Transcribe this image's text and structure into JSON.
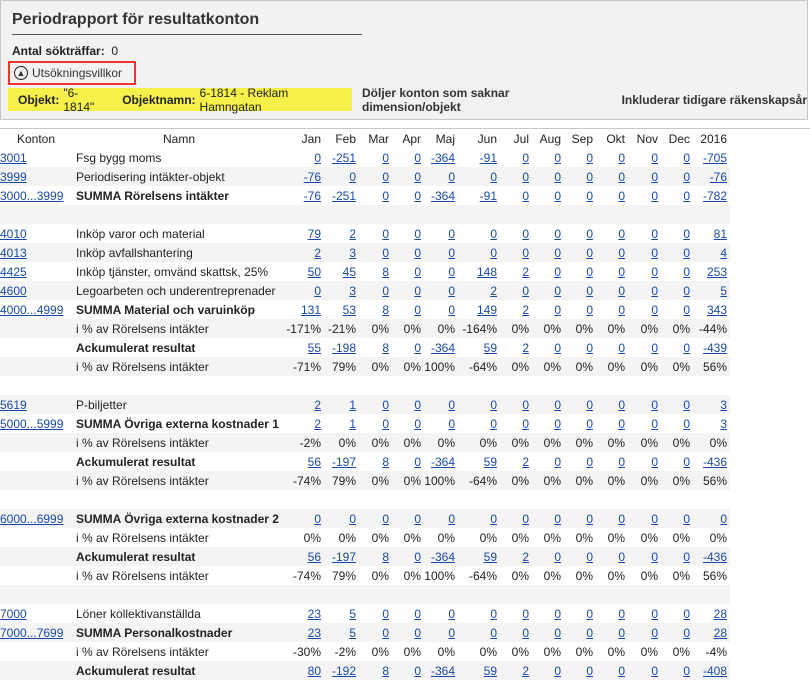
{
  "header": {
    "title": "Periodrapport för resultatkonton",
    "count_label": "Antal sökträffar:",
    "count_value": "0",
    "toggle_label": "Utsökningsvillkor",
    "filter_object_label": "Objekt:",
    "filter_object_value": "\"6-1814\"",
    "filter_objname_label": "Objektnamn:",
    "filter_objname_value": "6-1814 - Reklam Hamngatan",
    "filter_hide_label": "Döljer konton som saknar dimension/objekt",
    "filter_include_label": "Inkluderar tidigare räkenskapsår"
  },
  "columns": [
    "Konton",
    "Namn",
    "Jan",
    "Feb",
    "Mar",
    "Apr",
    "Maj",
    "Jun",
    "Jul",
    "Aug",
    "Sep",
    "Okt",
    "Nov",
    "Dec",
    "2016"
  ],
  "rows": [
    {
      "konto": "3001",
      "namn": "Fsg bygg moms",
      "bold": false,
      "link": true,
      "vals": [
        "0",
        "-251",
        "0",
        "0",
        "-364",
        "-91",
        "0",
        "0",
        "0",
        "0",
        "0",
        "0",
        "-705"
      ]
    },
    {
      "konto": "3999",
      "namn": "Periodisering intäkter-objekt",
      "bold": false,
      "link": true,
      "vals": [
        "-76",
        "0",
        "0",
        "0",
        "0",
        "0",
        "0",
        "0",
        "0",
        "0",
        "0",
        "0",
        "-76"
      ]
    },
    {
      "konto": "3000...3999",
      "namn": "SUMMA Rörelsens intäkter",
      "bold": true,
      "link": true,
      "vals": [
        "-76",
        "-251",
        "0",
        "0",
        "-364",
        "-91",
        "0",
        "0",
        "0",
        "0",
        "0",
        "0",
        "-782"
      ]
    },
    {
      "konto": "",
      "namn": "",
      "bold": false,
      "link": false,
      "vals": [
        "",
        "",
        "",
        "",
        "",
        "",
        "",
        "",
        "",
        "",
        "",
        "",
        ""
      ]
    },
    {
      "konto": "4010",
      "namn": "Inköp varor och material",
      "bold": false,
      "link": true,
      "vals": [
        "79",
        "2",
        "0",
        "0",
        "0",
        "0",
        "0",
        "0",
        "0",
        "0",
        "0",
        "0",
        "81"
      ]
    },
    {
      "konto": "4013",
      "namn": "Inköp avfallshantering",
      "bold": false,
      "link": true,
      "vals": [
        "2",
        "3",
        "0",
        "0",
        "0",
        "0",
        "0",
        "0",
        "0",
        "0",
        "0",
        "0",
        "4"
      ]
    },
    {
      "konto": "4425",
      "namn": "Inköp tjänster, omvänd skattsk, 25%",
      "bold": false,
      "link": true,
      "vals": [
        "50",
        "45",
        "8",
        "0",
        "0",
        "148",
        "2",
        "0",
        "0",
        "0",
        "0",
        "0",
        "253"
      ]
    },
    {
      "konto": "4600",
      "namn": "Legoarbeten och underentreprenader",
      "bold": false,
      "link": true,
      "vals": [
        "0",
        "3",
        "0",
        "0",
        "0",
        "2",
        "0",
        "0",
        "0",
        "0",
        "0",
        "0",
        "5"
      ]
    },
    {
      "konto": "4000...4999",
      "namn": "SUMMA Material och varuinköp",
      "bold": true,
      "link": true,
      "vals": [
        "131",
        "53",
        "8",
        "0",
        "0",
        "149",
        "2",
        "0",
        "0",
        "0",
        "0",
        "0",
        "343"
      ]
    },
    {
      "konto": "",
      "namn": "i % av Rörelsens intäkter",
      "bold": false,
      "link": false,
      "vals": [
        "-171%",
        "-21%",
        "0%",
        "0%",
        "0%",
        "-164%",
        "0%",
        "0%",
        "0%",
        "0%",
        "0%",
        "0%",
        "-44%"
      ]
    },
    {
      "konto": "",
      "namn": "Ackumulerat resultat",
      "bold": true,
      "link": true,
      "vals": [
        "55",
        "-198",
        "8",
        "0",
        "-364",
        "59",
        "2",
        "0",
        "0",
        "0",
        "0",
        "0",
        "-439"
      ]
    },
    {
      "konto": "",
      "namn": "i % av Rörelsens intäkter",
      "bold": false,
      "link": false,
      "vals": [
        "-71%",
        "79%",
        "0%",
        "0%",
        "100%",
        "-64%",
        "0%",
        "0%",
        "0%",
        "0%",
        "0%",
        "0%",
        "56%"
      ]
    },
    {
      "konto": "",
      "namn": "",
      "bold": false,
      "link": false,
      "vals": [
        "",
        "",
        "",
        "",
        "",
        "",
        "",
        "",
        "",
        "",
        "",
        "",
        ""
      ]
    },
    {
      "konto": "5619",
      "namn": "P-biljetter",
      "bold": false,
      "link": true,
      "vals": [
        "2",
        "1",
        "0",
        "0",
        "0",
        "0",
        "0",
        "0",
        "0",
        "0",
        "0",
        "0",
        "3"
      ]
    },
    {
      "konto": "5000...5999",
      "namn": "SUMMA Övriga externa kostnader 1",
      "bold": true,
      "link": true,
      "vals": [
        "2",
        "1",
        "0",
        "0",
        "0",
        "0",
        "0",
        "0",
        "0",
        "0",
        "0",
        "0",
        "3"
      ]
    },
    {
      "konto": "",
      "namn": "i % av Rörelsens intäkter",
      "bold": false,
      "link": false,
      "vals": [
        "-2%",
        "0%",
        "0%",
        "0%",
        "0%",
        "0%",
        "0%",
        "0%",
        "0%",
        "0%",
        "0%",
        "0%",
        "0%"
      ]
    },
    {
      "konto": "",
      "namn": "Ackumulerat resultat",
      "bold": true,
      "link": true,
      "vals": [
        "56",
        "-197",
        "8",
        "0",
        "-364",
        "59",
        "2",
        "0",
        "0",
        "0",
        "0",
        "0",
        "-436"
      ]
    },
    {
      "konto": "",
      "namn": "i % av Rörelsens intäkter",
      "bold": false,
      "link": false,
      "vals": [
        "-74%",
        "79%",
        "0%",
        "0%",
        "100%",
        "-64%",
        "0%",
        "0%",
        "0%",
        "0%",
        "0%",
        "0%",
        "56%"
      ]
    },
    {
      "konto": "",
      "namn": "",
      "bold": false,
      "link": false,
      "vals": [
        "",
        "",
        "",
        "",
        "",
        "",
        "",
        "",
        "",
        "",
        "",
        "",
        ""
      ]
    },
    {
      "konto": "6000...6999",
      "namn": "SUMMA Övriga externa kostnader 2",
      "bold": true,
      "link": true,
      "vals": [
        "0",
        "0",
        "0",
        "0",
        "0",
        "0",
        "0",
        "0",
        "0",
        "0",
        "0",
        "0",
        "0"
      ]
    },
    {
      "konto": "",
      "namn": "i % av Rörelsens intäkter",
      "bold": false,
      "link": false,
      "vals": [
        "0%",
        "0%",
        "0%",
        "0%",
        "0%",
        "0%",
        "0%",
        "0%",
        "0%",
        "0%",
        "0%",
        "0%",
        "0%"
      ]
    },
    {
      "konto": "",
      "namn": "Ackumulerat resultat",
      "bold": true,
      "link": true,
      "vals": [
        "56",
        "-197",
        "8",
        "0",
        "-364",
        "59",
        "2",
        "0",
        "0",
        "0",
        "0",
        "0",
        "-436"
      ]
    },
    {
      "konto": "",
      "namn": "i % av Rörelsens intäkter",
      "bold": false,
      "link": false,
      "vals": [
        "-74%",
        "79%",
        "0%",
        "0%",
        "100%",
        "-64%",
        "0%",
        "0%",
        "0%",
        "0%",
        "0%",
        "0%",
        "56%"
      ]
    },
    {
      "konto": "",
      "namn": "",
      "bold": false,
      "link": false,
      "vals": [
        "",
        "",
        "",
        "",
        "",
        "",
        "",
        "",
        "",
        "",
        "",
        "",
        ""
      ]
    },
    {
      "konto": "7000",
      "namn": "Löner kollektivanställda",
      "bold": false,
      "link": true,
      "vals": [
        "23",
        "5",
        "0",
        "0",
        "0",
        "0",
        "0",
        "0",
        "0",
        "0",
        "0",
        "0",
        "28"
      ]
    },
    {
      "konto": "7000...7699",
      "namn": "SUMMA Personalkostnader",
      "bold": true,
      "link": true,
      "vals": [
        "23",
        "5",
        "0",
        "0",
        "0",
        "0",
        "0",
        "0",
        "0",
        "0",
        "0",
        "0",
        "28"
      ]
    },
    {
      "konto": "",
      "namn": "i % av Rörelsens intäkter",
      "bold": false,
      "link": false,
      "vals": [
        "-30%",
        "-2%",
        "0%",
        "0%",
        "0%",
        "0%",
        "0%",
        "0%",
        "0%",
        "0%",
        "0%",
        "0%",
        "-4%"
      ]
    },
    {
      "konto": "",
      "namn": "Ackumulerat resultat",
      "bold": true,
      "link": true,
      "vals": [
        "80",
        "-192",
        "8",
        "0",
        "-364",
        "59",
        "2",
        "0",
        "0",
        "0",
        "0",
        "0",
        "-408"
      ]
    }
  ]
}
